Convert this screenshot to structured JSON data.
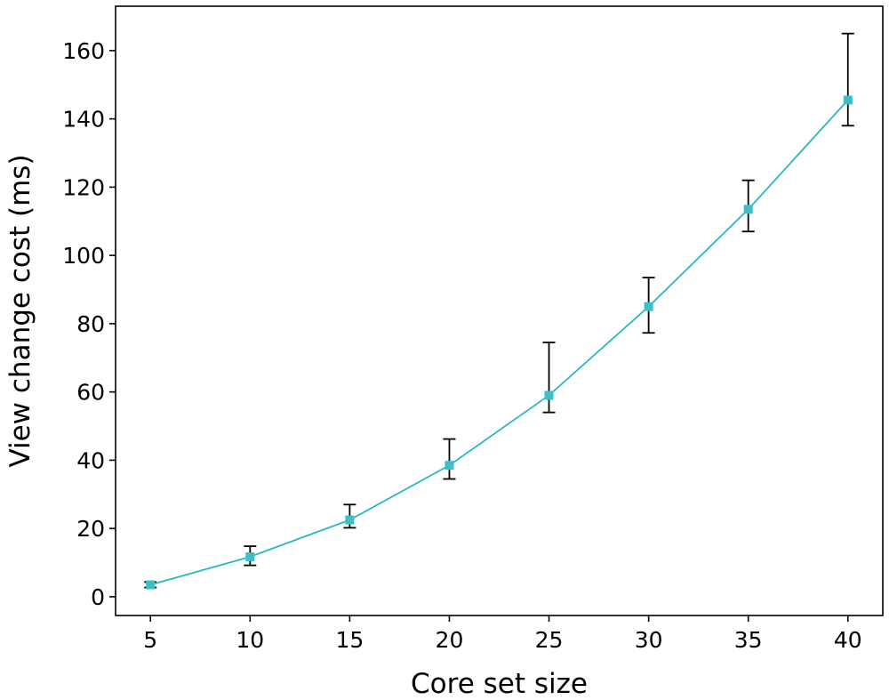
{
  "chart_data": {
    "type": "line",
    "title": "",
    "xlabel": "Core set size",
    "ylabel": "View change cost (ms)",
    "x": [
      5,
      10,
      15,
      20,
      25,
      30,
      35,
      40
    ],
    "xlim": [
      3.25,
      41.75
    ],
    "ylim": [
      -5.5,
      173
    ],
    "xticks": [
      5,
      10,
      15,
      20,
      25,
      30,
      35,
      40
    ],
    "yticks": [
      0,
      20,
      40,
      60,
      80,
      100,
      120,
      140,
      160
    ],
    "grid": false,
    "series": [
      {
        "name": "View change cost",
        "color": "#2ab8bf",
        "marker": "square",
        "values": [
          3.5,
          11.7,
          22.5,
          38.5,
          59.0,
          85.0,
          113.5,
          145.5
        ],
        "err_low": [
          2.7,
          9.2,
          20.2,
          34.5,
          54.0,
          77.3,
          107.0,
          138.0
        ],
        "err_high": [
          4.3,
          14.8,
          27.0,
          46.2,
          74.5,
          93.5,
          122.0,
          165.0
        ]
      }
    ],
    "colors": {
      "line": "#2ab8bf",
      "marker": "#3cbfc7",
      "errorbar": "#000000",
      "axis": "#000000"
    }
  }
}
